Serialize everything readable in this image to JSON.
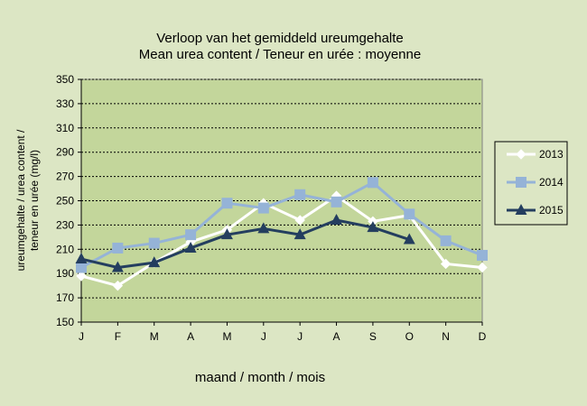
{
  "chart_data": {
    "type": "line",
    "title": "Verloop van het gemiddeld  ureumgehalte",
    "subtitle": "Mean urea content / Teneur en urée : moyenne",
    "xlabel": "maand  / month  / mois",
    "ylabel_line1": "ureumgehalte  / urea content /",
    "ylabel_line2": "teneur en urée  (mg/l)",
    "categories": [
      "J",
      "F",
      "M",
      "A",
      "M",
      "J",
      "J",
      "A",
      "S",
      "O",
      "N",
      "D"
    ],
    "ylim": [
      150,
      350
    ],
    "yticks": [
      150,
      170,
      190,
      210,
      230,
      250,
      270,
      290,
      310,
      330,
      350
    ],
    "grid": true,
    "legend_position": "right",
    "plot_background": "#c3d69b",
    "series": [
      {
        "name": "2013",
        "color": "#ffffff",
        "marker": "diamond",
        "values": [
          188,
          180,
          199,
          216,
          226,
          248,
          234,
          254,
          233,
          238,
          198,
          195
        ]
      },
      {
        "name": "2014",
        "color": "#95b3d7",
        "marker": "square",
        "values": [
          195,
          211,
          215,
          222,
          248,
          244,
          255,
          249,
          265,
          239,
          217,
          205
        ]
      },
      {
        "name": "2015",
        "color": "#243e5f",
        "marker": "triangle",
        "values": [
          202,
          195,
          199,
          211,
          222,
          227,
          222,
          234,
          228,
          218,
          null,
          null
        ]
      }
    ]
  }
}
